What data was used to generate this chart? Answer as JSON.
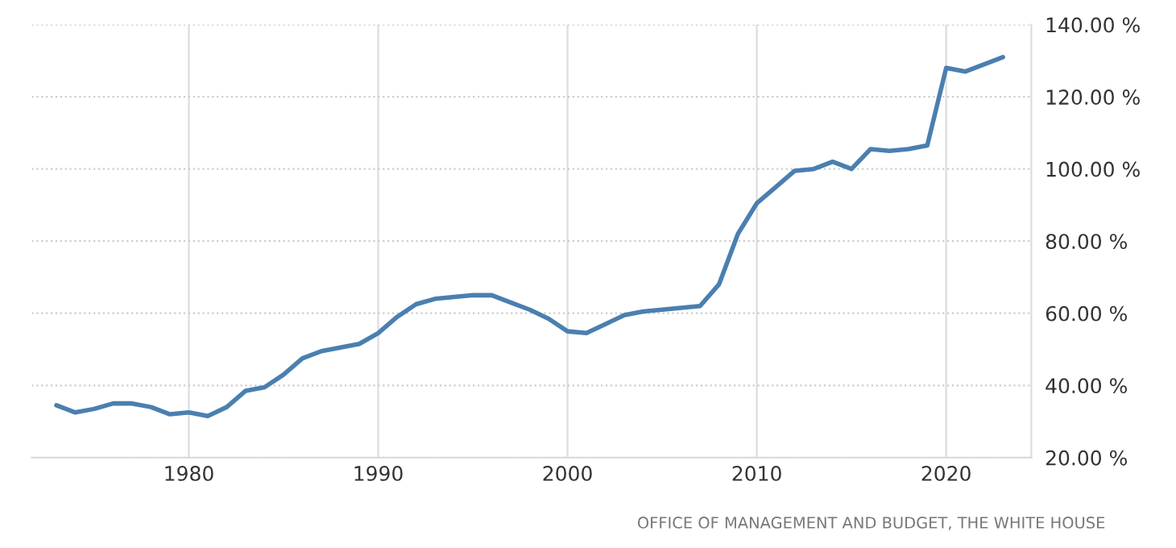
{
  "chart_data": {
    "type": "line",
    "x": [
      1973,
      1974,
      1975,
      1976,
      1977,
      1978,
      1979,
      1980,
      1981,
      1982,
      1983,
      1984,
      1985,
      1986,
      1987,
      1988,
      1989,
      1990,
      1991,
      1992,
      1993,
      1994,
      1995,
      1996,
      1997,
      1998,
      1999,
      2000,
      2001,
      2002,
      2003,
      2004,
      2005,
      2006,
      2007,
      2008,
      2009,
      2010,
      2011,
      2012,
      2013,
      2014,
      2015,
      2016,
      2017,
      2018,
      2019,
      2020,
      2021,
      2022,
      2023
    ],
    "series": [
      {
        "color": "#4a7fb0",
        "values": [
          34.5,
          32.5,
          33.5,
          35,
          35,
          34,
          32,
          32.5,
          31.5,
          34,
          38.5,
          39.5,
          43,
          47.5,
          49.5,
          50.5,
          51.5,
          54.5,
          59,
          62.5,
          64,
          64.5,
          65,
          65,
          63,
          61,
          58.5,
          55,
          54.5,
          57,
          59.5,
          60.5,
          61,
          61.5,
          62,
          68,
          82,
          90.5,
          95,
          99.5,
          100,
          102,
          100,
          105.5,
          105,
          105.5,
          106.5,
          128,
          127,
          129,
          131
        ]
      }
    ],
    "xlim": [
      1971.7,
      2024.5
    ],
    "xticks": [
      1980,
      1990,
      2000,
      2010,
      2020
    ],
    "ylim": [
      20,
      140
    ],
    "yticks": [
      {
        "value": 20,
        "label": "20.00 %"
      },
      {
        "value": 40,
        "label": "40.00 %"
      },
      {
        "value": 60,
        "label": "60.00 %"
      },
      {
        "value": 80,
        "label": "80.00 %"
      },
      {
        "value": 100,
        "label": "100.00 %"
      },
      {
        "value": 120,
        "label": "120.00 %"
      },
      {
        "value": 140,
        "label": "140.00 %"
      }
    ],
    "grid": true,
    "legend": false,
    "marker": "none",
    "line_style": "solid",
    "annotations": [
      "OFFICE OF MANAGEMENT AND BUDGET, THE WHITE HOUSE"
    ]
  }
}
